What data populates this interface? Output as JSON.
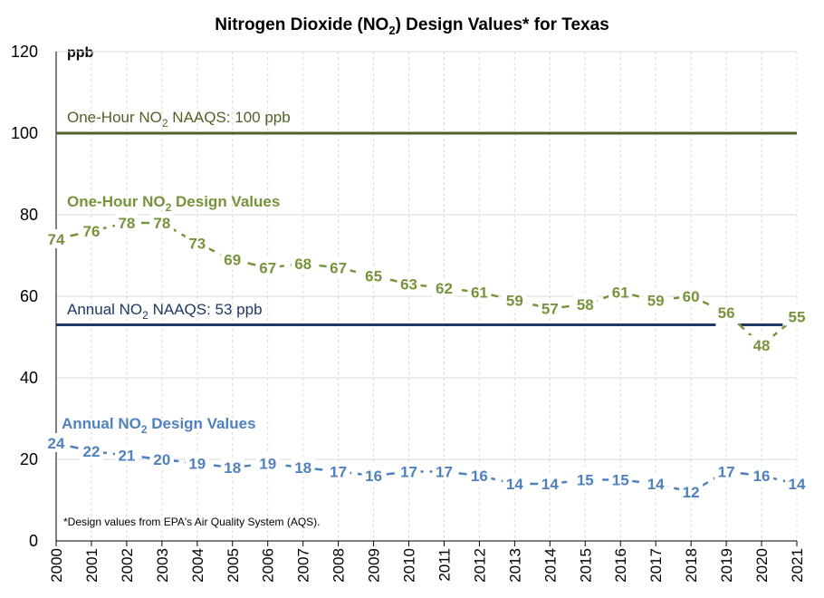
{
  "chart_data": {
    "type": "line",
    "title": "Nitrogen Dioxide (NO2) Design Values* for Texas",
    "title_parts": {
      "before": "Nitrogen Dioxide (NO",
      "sub": "2",
      "after": ") Design Values* for Texas"
    },
    "unit_label": "ppb",
    "ylim": [
      0,
      120
    ],
    "yticks": [
      0,
      20,
      40,
      60,
      80,
      100,
      120
    ],
    "x": [
      2000,
      2001,
      2002,
      2003,
      2004,
      2005,
      2006,
      2007,
      2008,
      2009,
      2010,
      2011,
      2012,
      2013,
      2014,
      2015,
      2016,
      2017,
      2018,
      2019,
      2020,
      2021
    ],
    "grid": true,
    "series": [
      {
        "name": "One-Hour NO2 Design Values",
        "name_parts": {
          "before": "One-Hour NO",
          "sub": "2",
          "after": " Design Values"
        },
        "color": "#77933c",
        "values": [
          74,
          76,
          78,
          78,
          73,
          69,
          67,
          68,
          67,
          65,
          63,
          62,
          61,
          59,
          57,
          58,
          61,
          59,
          60,
          56,
          48,
          55
        ]
      },
      {
        "name": "Annual NO2 Design Values",
        "name_parts": {
          "before": "Annual NO",
          "sub": "2",
          "after": " Design Values"
        },
        "color": "#4f81bd",
        "values": [
          24,
          22,
          21,
          20,
          19,
          18,
          19,
          18,
          17,
          16,
          17,
          17,
          16,
          14,
          14,
          15,
          15,
          14,
          12,
          17,
          16,
          14
        ]
      }
    ],
    "reference_lines": [
      {
        "label": "One-Hour NO2 NAAQS: 100 ppb",
        "label_parts": {
          "before": "One-Hour NO",
          "sub": "2",
          "after": " NAAQS: 100 ppb"
        },
        "value": 100,
        "color": "#4f6228",
        "gaps": []
      },
      {
        "label": "Annual NO2 NAAQS: 53 ppb",
        "label_parts": {
          "before": "Annual NO",
          "sub": "2",
          "after": " NAAQS: 53 ppb"
        },
        "value": 53,
        "color": "#1f3864",
        "gaps": [
          [
            2018.7,
            2019.4
          ],
          [
            2020.6,
            2021
          ]
        ]
      }
    ],
    "footnote": "*Design values from EPA's Air Quality System (AQS)."
  }
}
